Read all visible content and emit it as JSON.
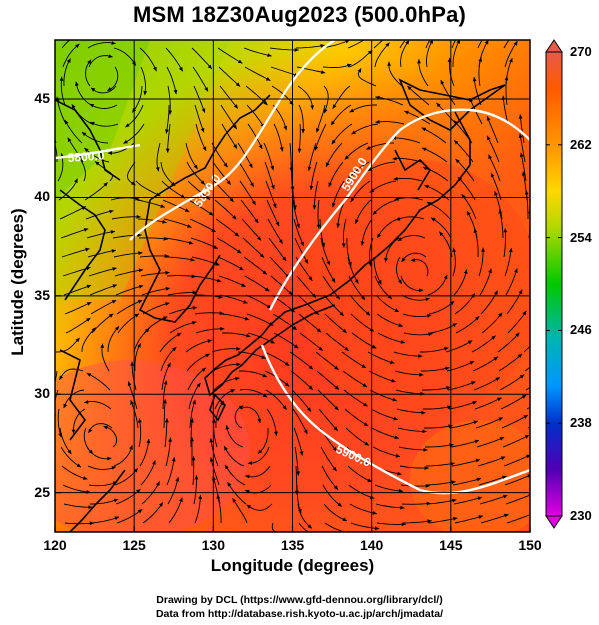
{
  "title": "MSM 18Z30Aug2023 (500.0hPa)",
  "chart_data": {
    "type": "heatmap",
    "title": "MSM 18Z30Aug2023 (500.0hPa)",
    "xlabel": "Longitude (degrees)",
    "ylabel": "Latitude  (degrees)",
    "xlim": [
      120,
      150
    ],
    "ylim": [
      23,
      48
    ],
    "x_ticks": [
      "120",
      "125",
      "130",
      "135",
      "140",
      "145",
      "150"
    ],
    "y_ticks": [
      "25",
      "30",
      "35",
      "40",
      "45"
    ],
    "grid": true,
    "colorbar": {
      "min": 230,
      "max": 270,
      "labels": [
        "270",
        "262",
        "254",
        "246",
        "238",
        "230"
      ],
      "colors": [
        "#e65a4a",
        "#ff8c00",
        "#ffd700",
        "#7ed000",
        "#00c800",
        "#00b4b4",
        "#0096ff",
        "#0030c8",
        "#5000b4",
        "#e000e0"
      ]
    },
    "contour_labels": [
      "5900.0",
      "5900.0",
      "5850.0",
      "5800.0"
    ],
    "features": [
      "streamlines",
      "temperature shading",
      "geopotential height contours",
      "coastlines"
    ]
  },
  "credits": {
    "line1": "Drawing by DCL (https://www.gfd-dennou.org/library/dcl/)",
    "line2": "Data from http://database.rish.kyoto-u.ac.jp/arch/jmadata/"
  }
}
